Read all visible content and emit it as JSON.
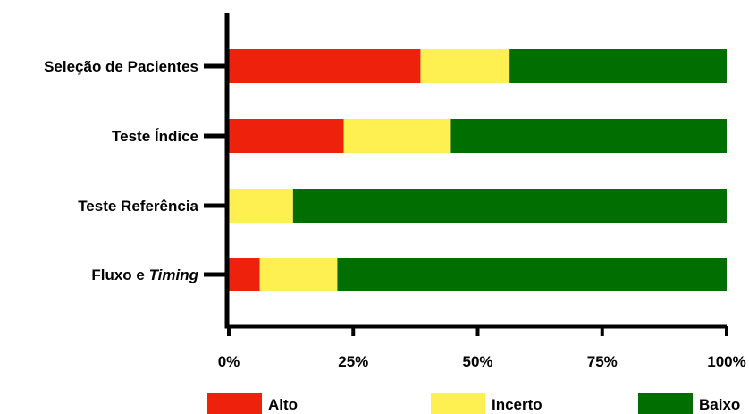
{
  "chart_data": {
    "type": "bar",
    "orientation": "horizontal",
    "stacked": true,
    "percent": true,
    "title": "",
    "xlabel": "",
    "ylabel": "",
    "xlim": [
      0,
      100
    ],
    "x_ticks": [
      "0%",
      "25%",
      "50%",
      "75%",
      "100%"
    ],
    "categories": [
      {
        "prefix": "Seleção de Pacientes",
        "italic": ""
      },
      {
        "prefix": "Teste Índice",
        "italic": ""
      },
      {
        "prefix": "Teste Referência",
        "italic": ""
      },
      {
        "prefix": "Fluxo e ",
        "italic": "Timing"
      }
    ],
    "series": [
      {
        "name": "Alto",
        "color": "#ee220c",
        "values": [
          38.5,
          23.1,
          0,
          6.2
        ]
      },
      {
        "name": "Incerto",
        "color": "#fff052",
        "values": [
          17.9,
          21.5,
          12.9,
          15.6
        ]
      },
      {
        "name": "Baixo",
        "color": "#006e00",
        "values": [
          43.6,
          55.4,
          87.1,
          78.2
        ]
      }
    ],
    "legend_position": "bottom",
    "grid": false
  }
}
